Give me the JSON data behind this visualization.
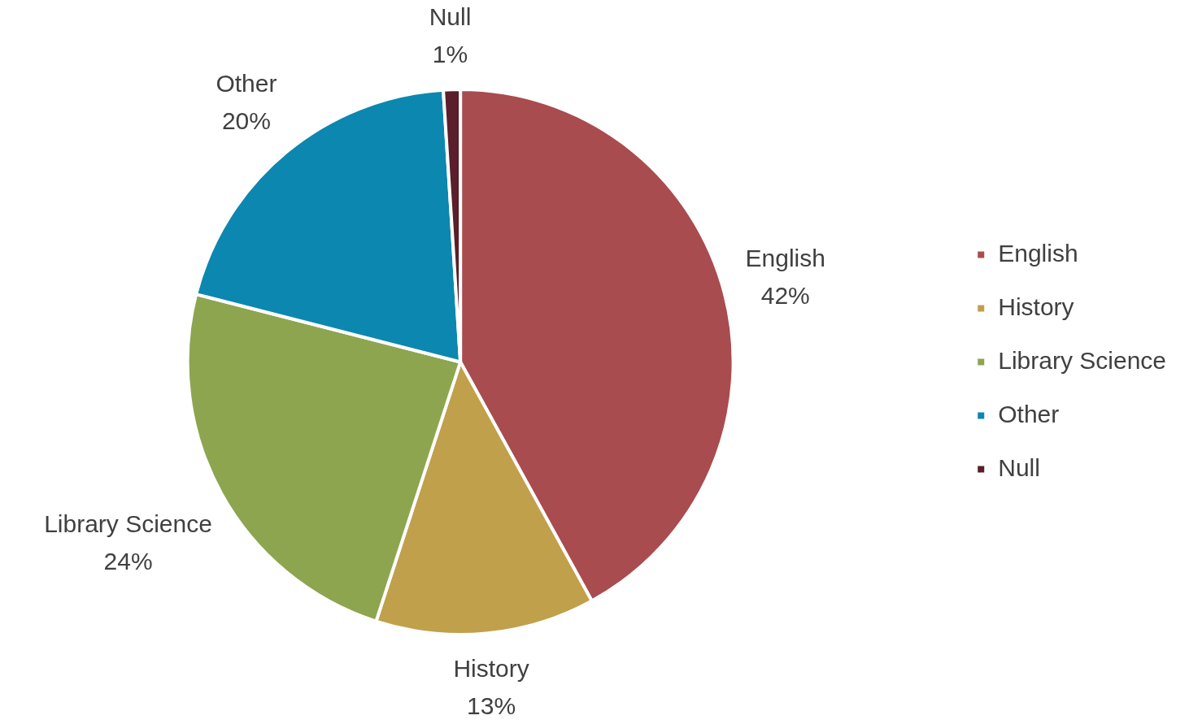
{
  "chart_data": {
    "type": "pie",
    "categories": [
      "English",
      "History",
      "Library Science",
      "Other",
      "Null"
    ],
    "values": [
      42,
      13,
      24,
      20,
      1
    ],
    "colors": [
      "#a84c4f",
      "#c0a04b",
      "#8ea550",
      "#0b87b0",
      "#5a1f2a"
    ],
    "value_labels": [
      "42%",
      "13%",
      "24%",
      "20%",
      "1%"
    ],
    "legend": "right"
  }
}
